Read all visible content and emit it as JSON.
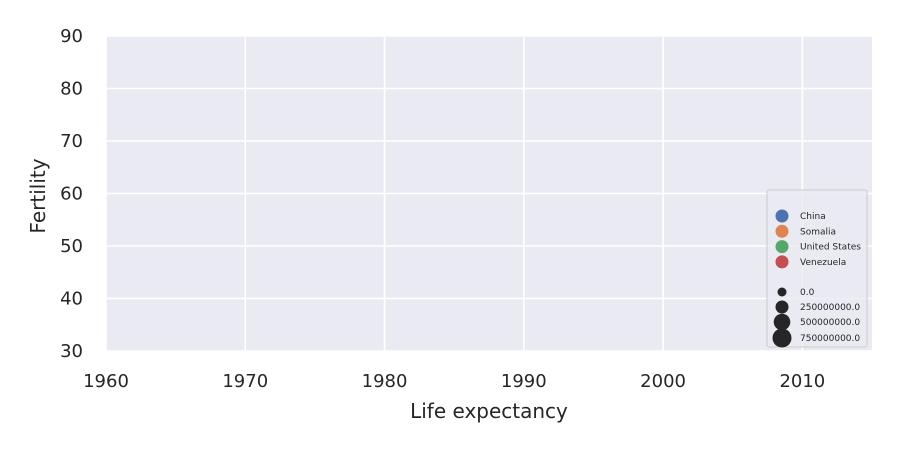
{
  "chart_data": {
    "type": "scatter",
    "title": "",
    "xlabel": "Life expectancy",
    "ylabel": "Fertility",
    "xlim": [
      1960,
      2015
    ],
    "ylim": [
      30,
      90
    ],
    "x_ticks": [
      1960,
      1970,
      1980,
      1990,
      2000,
      2010
    ],
    "y_ticks": [
      30,
      40,
      50,
      60,
      70,
      80,
      90
    ],
    "grid": true,
    "legend_placement": "lower-right",
    "series": [
      {
        "name": "China",
        "color": "#4c72b0",
        "points": []
      },
      {
        "name": "Somalia",
        "color": "#dd8452",
        "points": []
      },
      {
        "name": "United States",
        "color": "#55a868",
        "points": []
      },
      {
        "name": "Venezuela",
        "color": "#c44e52",
        "points": []
      }
    ],
    "size_legend": [
      {
        "label": "0.0",
        "value": 0
      },
      {
        "label": "250000000.0",
        "value": 250000000
      },
      {
        "label": "500000000.0",
        "value": 500000000
      },
      {
        "label": "750000000.0",
        "value": 750000000
      }
    ],
    "colors": {
      "plot_background": "#eaeaf2",
      "grid": "#ffffff",
      "size_marker": "#262626"
    }
  }
}
